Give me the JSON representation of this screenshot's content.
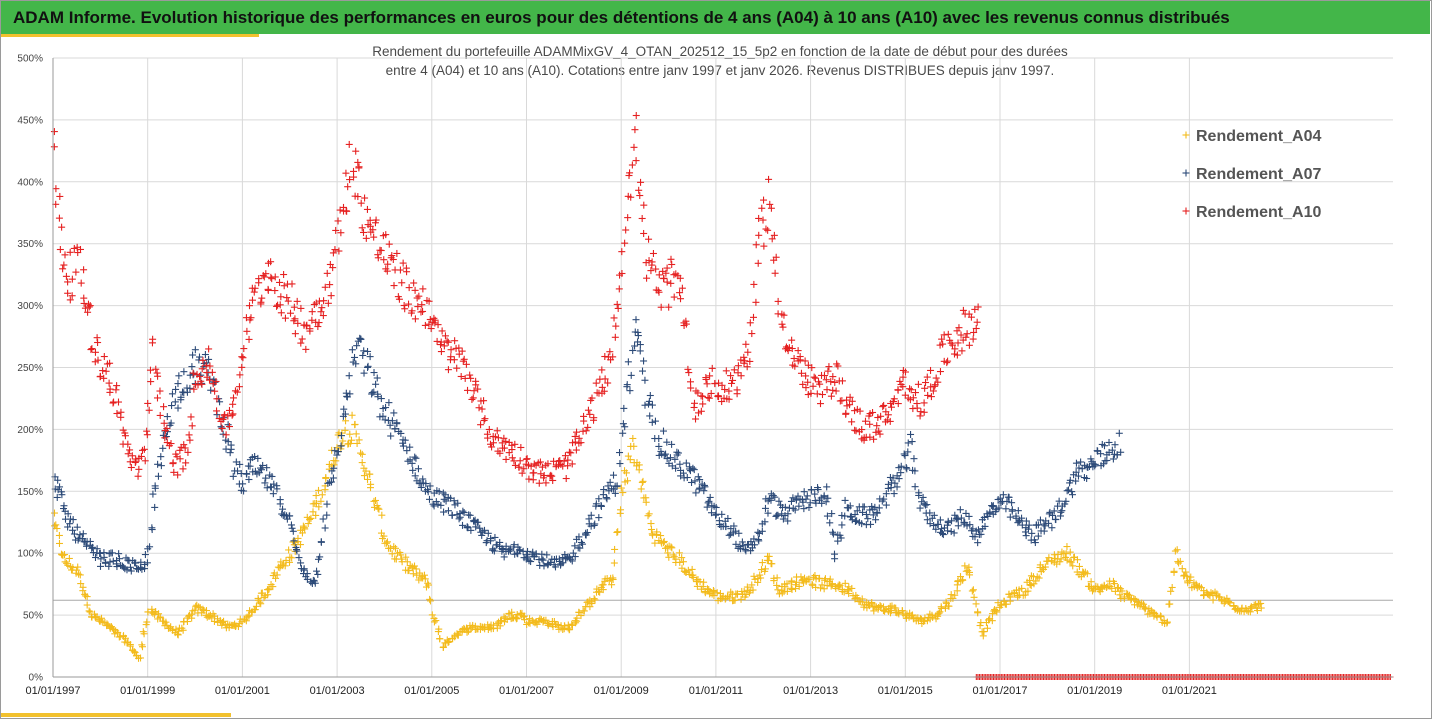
{
  "header": {
    "title": "ADAM Informe. Evolution historique des performances en euros pour des détentions de 4 ans (A04) à 10 ans (A10) avec les revenus connus distribués"
  },
  "colors": {
    "header_bg": "#43b649",
    "accent": "#f2c12e",
    "A04": "#f3bb1c",
    "A07": "#2c4a78",
    "A10": "#e52020"
  },
  "chart_data": {
    "type": "scatter",
    "subtitle_lines": [
      "Rendement du portefeuille ADAMMixGV_4_OTAN_202512_15_5p2  en fonction de la date de début pour des durées",
      "entre 4 (A04) et 10 ans (A10). Cotations entre janv 1997 et janv 2026. Revenus DISTRIBUES depuis janv 1997."
    ],
    "x_ticks": [
      "01/01/1997",
      "01/01/1999",
      "01/01/2001",
      "01/01/2003",
      "01/01/2005",
      "01/01/2007",
      "01/01/2009",
      "01/01/2011",
      "01/01/2013",
      "01/01/2015",
      "01/01/2017",
      "01/01/2019",
      "01/01/2021"
    ],
    "y_ticks": [
      "0%",
      "50%",
      "100%",
      "150%",
      "200%",
      "250%",
      "300%",
      "350%",
      "400%",
      "450%",
      "500%"
    ],
    "xlim": [
      1997.0,
      2025.3
    ],
    "ylim": [
      0,
      500
    ],
    "reference_line_y": 62,
    "zero_marker_range": [
      2016.5,
      2025.25
    ],
    "legend": {
      "position": "top-right"
    },
    "series": [
      {
        "name": "Rendement_A04",
        "key": "A04",
        "x_range": [
          1997.0,
          2022.5
        ],
        "anchors": [
          [
            1997.0,
            125
          ],
          [
            1997.2,
            95
          ],
          [
            1997.5,
            85
          ],
          [
            1997.8,
            50
          ],
          [
            1998.0,
            45
          ],
          [
            1998.5,
            30
          ],
          [
            1998.8,
            15
          ],
          [
            1999.0,
            55
          ],
          [
            1999.3,
            45
          ],
          [
            1999.6,
            35
          ],
          [
            2000.0,
            55
          ],
          [
            2000.3,
            50
          ],
          [
            2000.7,
            40
          ],
          [
            2001.0,
            45
          ],
          [
            2001.2,
            55
          ],
          [
            2001.5,
            70
          ],
          [
            2001.8,
            90
          ],
          [
            2002.0,
            100
          ],
          [
            2002.3,
            120
          ],
          [
            2002.6,
            145
          ],
          [
            2002.9,
            180
          ],
          [
            2003.1,
            200
          ],
          [
            2003.3,
            200
          ],
          [
            2003.5,
            180
          ],
          [
            2003.7,
            150
          ],
          [
            2004.0,
            110
          ],
          [
            2004.3,
            95
          ],
          [
            2004.6,
            85
          ],
          [
            2004.9,
            75
          ],
          [
            2005.0,
            50
          ],
          [
            2005.2,
            25
          ],
          [
            2005.5,
            35
          ],
          [
            2005.8,
            40
          ],
          [
            2006.0,
            40
          ],
          [
            2006.3,
            40
          ],
          [
            2006.6,
            50
          ],
          [
            2006.9,
            50
          ],
          [
            2007.0,
            45
          ],
          [
            2007.4,
            45
          ],
          [
            2007.7,
            40
          ],
          [
            2007.9,
            40
          ],
          [
            2008.2,
            55
          ],
          [
            2008.5,
            70
          ],
          [
            2008.8,
            80
          ],
          [
            2009.0,
            150
          ],
          [
            2009.2,
            185
          ],
          [
            2009.4,
            160
          ],
          [
            2009.6,
            120
          ],
          [
            2009.9,
            105
          ],
          [
            2010.2,
            95
          ],
          [
            2010.5,
            80
          ],
          [
            2010.8,
            70
          ],
          [
            2011.0,
            65
          ],
          [
            2011.4,
            65
          ],
          [
            2011.7,
            70
          ],
          [
            2011.9,
            85
          ],
          [
            2012.1,
            95
          ],
          [
            2012.3,
            70
          ],
          [
            2012.6,
            75
          ],
          [
            2012.9,
            80
          ],
          [
            2013.2,
            75
          ],
          [
            2013.5,
            75
          ],
          [
            2013.8,
            70
          ],
          [
            2014.1,
            60
          ],
          [
            2014.4,
            55
          ],
          [
            2014.7,
            55
          ],
          [
            2015.0,
            50
          ],
          [
            2015.3,
            45
          ],
          [
            2015.6,
            50
          ],
          [
            2015.9,
            60
          ],
          [
            2016.1,
            75
          ],
          [
            2016.3,
            90
          ],
          [
            2016.6,
            35
          ],
          [
            2016.9,
            55
          ],
          [
            2017.2,
            65
          ],
          [
            2017.5,
            70
          ],
          [
            2017.8,
            85
          ],
          [
            2018.1,
            95
          ],
          [
            2018.4,
            100
          ],
          [
            2018.7,
            85
          ],
          [
            2019.0,
            70
          ],
          [
            2019.3,
            75
          ],
          [
            2019.6,
            65
          ],
          [
            2019.9,
            60
          ],
          [
            2020.2,
            50
          ],
          [
            2020.5,
            45
          ],
          [
            2020.7,
            100
          ],
          [
            2020.9,
            80
          ],
          [
            2021.2,
            70
          ],
          [
            2021.5,
            65
          ],
          [
            2021.8,
            60
          ],
          [
            2022.1,
            55
          ],
          [
            2022.5,
            57
          ]
        ]
      },
      {
        "name": "Rendement_A07",
        "key": "A07",
        "x_range": [
          1997.0,
          2019.5
        ],
        "anchors": [
          [
            1997.0,
            160
          ],
          [
            1997.2,
            135
          ],
          [
            1997.4,
            120
          ],
          [
            1997.7,
            105
          ],
          [
            1998.0,
            95
          ],
          [
            1998.3,
            95
          ],
          [
            1998.6,
            90
          ],
          [
            1998.8,
            85
          ],
          [
            1999.0,
            100
          ],
          [
            1999.1,
            140
          ],
          [
            1999.4,
            210
          ],
          [
            1999.7,
            240
          ],
          [
            2000.0,
            250
          ],
          [
            2000.3,
            245
          ],
          [
            2000.6,
            200
          ],
          [
            2000.8,
            170
          ],
          [
            2001.0,
            155
          ],
          [
            2001.2,
            170
          ],
          [
            2001.5,
            160
          ],
          [
            2001.8,
            140
          ],
          [
            2002.0,
            120
          ],
          [
            2002.2,
            90
          ],
          [
            2002.5,
            75
          ],
          [
            2002.8,
            150
          ],
          [
            2003.0,
            185
          ],
          [
            2003.2,
            230
          ],
          [
            2003.4,
            270
          ],
          [
            2003.6,
            250
          ],
          [
            2003.9,
            220
          ],
          [
            2004.2,
            200
          ],
          [
            2004.5,
            180
          ],
          [
            2004.8,
            155
          ],
          [
            2005.0,
            145
          ],
          [
            2005.3,
            140
          ],
          [
            2005.6,
            130
          ],
          [
            2005.9,
            120
          ],
          [
            2006.2,
            110
          ],
          [
            2006.5,
            100
          ],
          [
            2006.8,
            105
          ],
          [
            2007.0,
            100
          ],
          [
            2007.3,
            95
          ],
          [
            2007.6,
            90
          ],
          [
            2007.9,
            95
          ],
          [
            2008.1,
            110
          ],
          [
            2008.4,
            130
          ],
          [
            2008.7,
            150
          ],
          [
            2008.9,
            160
          ],
          [
            2009.1,
            230
          ],
          [
            2009.3,
            280
          ],
          [
            2009.5,
            230
          ],
          [
            2009.8,
            190
          ],
          [
            2010.1,
            175
          ],
          [
            2010.4,
            165
          ],
          [
            2010.7,
            150
          ],
          [
            2011.0,
            130
          ],
          [
            2011.3,
            120
          ],
          [
            2011.6,
            100
          ],
          [
            2011.9,
            115
          ],
          [
            2012.1,
            145
          ],
          [
            2012.4,
            130
          ],
          [
            2012.7,
            140
          ],
          [
            2013.0,
            145
          ],
          [
            2013.3,
            150
          ],
          [
            2013.5,
            100
          ],
          [
            2013.7,
            135
          ],
          [
            2014.0,
            130
          ],
          [
            2014.3,
            130
          ],
          [
            2014.6,
            150
          ],
          [
            2014.9,
            165
          ],
          [
            2015.1,
            185
          ],
          [
            2015.3,
            140
          ],
          [
            2015.6,
            125
          ],
          [
            2015.9,
            120
          ],
          [
            2016.2,
            130
          ],
          [
            2016.5,
            115
          ],
          [
            2016.8,
            135
          ],
          [
            2017.1,
            140
          ],
          [
            2017.4,
            125
          ],
          [
            2017.7,
            115
          ],
          [
            2018.0,
            125
          ],
          [
            2018.3,
            140
          ],
          [
            2018.6,
            165
          ],
          [
            2018.9,
            170
          ],
          [
            2019.2,
            180
          ],
          [
            2019.5,
            190
          ]
        ]
      },
      {
        "name": "Rendement_A10",
        "key": "A10",
        "x_range": [
          1997.0,
          2016.5
        ],
        "anchors": [
          [
            1997.0,
            420
          ],
          [
            1997.1,
            370
          ],
          [
            1997.3,
            320
          ],
          [
            1997.5,
            335
          ],
          [
            1997.7,
            300
          ],
          [
            1997.9,
            260
          ],
          [
            1998.2,
            240
          ],
          [
            1998.5,
            190
          ],
          [
            1998.7,
            170
          ],
          [
            1998.9,
            175
          ],
          [
            1999.1,
            265
          ],
          [
            1999.3,
            210
          ],
          [
            1999.5,
            170
          ],
          [
            1999.8,
            180
          ],
          [
            2000.0,
            250
          ],
          [
            2000.3,
            250
          ],
          [
            2000.6,
            200
          ],
          [
            2000.8,
            220
          ],
          [
            2001.0,
            270
          ],
          [
            2001.2,
            300
          ],
          [
            2001.5,
            330
          ],
          [
            2001.8,
            310
          ],
          [
            2002.0,
            300
          ],
          [
            2002.3,
            280
          ],
          [
            2002.6,
            300
          ],
          [
            2002.9,
            330
          ],
          [
            2003.1,
            380
          ],
          [
            2003.3,
            420
          ],
          [
            2003.5,
            385
          ],
          [
            2003.7,
            360
          ],
          [
            2004.0,
            340
          ],
          [
            2004.3,
            320
          ],
          [
            2004.6,
            305
          ],
          [
            2004.9,
            300
          ],
          [
            2005.1,
            270
          ],
          [
            2005.4,
            260
          ],
          [
            2005.7,
            250
          ],
          [
            2006.0,
            215
          ],
          [
            2006.3,
            190
          ],
          [
            2006.6,
            185
          ],
          [
            2006.9,
            175
          ],
          [
            2007.2,
            165
          ],
          [
            2007.5,
            165
          ],
          [
            2007.8,
            170
          ],
          [
            2008.1,
            190
          ],
          [
            2008.4,
            220
          ],
          [
            2008.7,
            250
          ],
          [
            2008.9,
            300
          ],
          [
            2009.1,
            390
          ],
          [
            2009.3,
            430
          ],
          [
            2009.5,
            340
          ],
          [
            2009.8,
            310
          ],
          [
            2010.1,
            320
          ],
          [
            2010.3,
            300
          ],
          [
            2010.5,
            215
          ],
          [
            2010.8,
            240
          ],
          [
            2011.1,
            230
          ],
          [
            2011.4,
            240
          ],
          [
            2011.7,
            270
          ],
          [
            2011.9,
            350
          ],
          [
            2012.1,
            390
          ],
          [
            2012.3,
            300
          ],
          [
            2012.6,
            260
          ],
          [
            2012.9,
            240
          ],
          [
            2013.2,
            230
          ],
          [
            2013.5,
            245
          ],
          [
            2013.8,
            215
          ],
          [
            2014.1,
            200
          ],
          [
            2014.4,
            205
          ],
          [
            2014.7,
            215
          ],
          [
            2015.0,
            240
          ],
          [
            2015.3,
            220
          ],
          [
            2015.6,
            245
          ],
          [
            2015.9,
            270
          ],
          [
            2016.2,
            280
          ],
          [
            2016.5,
            290
          ]
        ]
      }
    ]
  }
}
